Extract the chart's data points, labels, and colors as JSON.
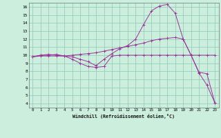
{
  "background_color": "#cceedd",
  "grid_color": "#99ccbb",
  "line_color": "#993399",
  "xlim": [
    -0.5,
    23.5
  ],
  "ylim": [
    3.5,
    16.5
  ],
  "xtick_labels": [
    "0",
    "1",
    "2",
    "3",
    "4",
    "5",
    "6",
    "7",
    "8",
    "9",
    "10",
    "11",
    "12",
    "13",
    "14",
    "15",
    "16",
    "17",
    "18",
    "19",
    "20",
    "21",
    "22",
    "23"
  ],
  "xtick_vals": [
    0,
    1,
    2,
    3,
    4,
    5,
    6,
    7,
    8,
    9,
    10,
    11,
    12,
    13,
    14,
    15,
    16,
    17,
    18,
    19,
    20,
    21,
    22,
    23
  ],
  "ytick_vals": [
    4,
    5,
    6,
    7,
    8,
    9,
    10,
    11,
    12,
    13,
    14,
    15,
    16
  ],
  "ytick_labels": [
    "4",
    "5",
    "6",
    "7",
    "8",
    "9",
    "10",
    "11",
    "12",
    "13",
    "14",
    "15",
    "16"
  ],
  "xlabel": "Windchill (Refroidissement éolien,°C)",
  "line1_x": [
    0,
    1,
    2,
    3,
    4,
    5,
    6,
    7,
    8,
    9,
    10,
    11,
    12,
    13,
    14,
    15,
    16,
    17,
    18,
    19,
    20,
    21,
    22,
    23
  ],
  "line1_y": [
    9.8,
    10.0,
    10.0,
    10.1,
    9.9,
    9.5,
    9.0,
    8.6,
    8.5,
    8.6,
    9.9,
    10.0,
    10.0,
    10.0,
    10.0,
    10.0,
    10.0,
    10.0,
    10.0,
    10.0,
    10.0,
    10.0,
    10.0,
    10.0
  ],
  "line2_x": [
    0,
    1,
    2,
    3,
    4,
    5,
    6,
    7,
    8,
    9,
    10,
    11,
    12,
    13,
    14,
    15,
    16,
    17,
    18,
    19,
    20,
    21,
    22,
    23
  ],
  "line2_y": [
    9.8,
    10.0,
    10.1,
    10.0,
    9.9,
    9.8,
    9.5,
    9.2,
    8.7,
    9.5,
    10.2,
    10.8,
    11.2,
    12.0,
    13.8,
    15.5,
    16.1,
    16.3,
    15.2,
    12.0,
    10.0,
    7.8,
    6.3,
    4.1
  ],
  "line3_x": [
    0,
    1,
    2,
    3,
    4,
    5,
    6,
    7,
    8,
    9,
    10,
    11,
    12,
    13,
    14,
    15,
    16,
    17,
    18,
    19,
    20,
    21,
    22,
    23
  ],
  "line3_y": [
    9.8,
    9.9,
    9.9,
    9.9,
    9.9,
    10.0,
    10.1,
    10.2,
    10.3,
    10.5,
    10.7,
    10.9,
    11.1,
    11.3,
    11.5,
    11.8,
    12.0,
    12.1,
    12.2,
    12.0,
    10.0,
    7.9,
    7.7,
    4.1
  ]
}
